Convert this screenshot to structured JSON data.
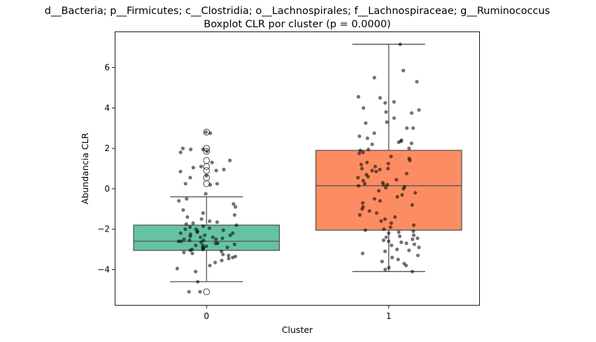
{
  "chart_data": {
    "type": "box",
    "title": "d__Bacteria; p__Firmicutes; c__Clostridia; o__Lachnospirales; f__Lachnospiraceae; g__Ruminococcus",
    "subtitle": "Boxplot CLR por cluster (p = 0.0000)",
    "xlabel": "Cluster",
    "ylabel": "Abundancia CLR",
    "categories": [
      "0",
      "1"
    ],
    "ylim": [
      -5.75,
      7.75
    ],
    "yticks": [
      -4,
      -2,
      0,
      2,
      4,
      6
    ],
    "grid": false,
    "colors": {
      "box": [
        "#66c2a5",
        "#fc8d62"
      ],
      "line": "#555555",
      "point": "#000000"
    },
    "boxes": [
      {
        "category": "0",
        "q1": -3.05,
        "median": -2.6,
        "q3": -1.8,
        "whisker_low": -4.6,
        "whisker_high": -0.4,
        "outliers": [
          2.8,
          2.0,
          1.85,
          1.4,
          1.1,
          0.9,
          0.55,
          0.25,
          -5.1
        ]
      },
      {
        "category": "1",
        "q1": -2.05,
        "median": 0.15,
        "q3": 1.9,
        "whisker_low": -4.1,
        "whisker_high": 7.15,
        "outliers": []
      }
    ],
    "strip_points": [
      {
        "category": "0",
        "values": [
          2.8,
          2.75,
          2.0,
          1.95,
          1.95,
          1.85,
          1.8,
          1.4,
          1.3,
          1.1,
          1.05,
          0.95,
          0.9,
          0.85,
          0.65,
          0.55,
          0.25,
          0.25,
          0.2,
          -0.25,
          -0.5,
          -0.6,
          -0.75,
          -0.9,
          -1.05,
          -1.2,
          -1.3,
          -1.4,
          -1.5,
          -1.6,
          -1.65,
          -1.7,
          -1.75,
          -1.8,
          -1.85,
          -1.9,
          -1.95,
          -2.0,
          -2.0,
          -2.05,
          -2.1,
          -2.15,
          -2.2,
          -2.2,
          -2.25,
          -2.3,
          -2.3,
          -2.35,
          -2.4,
          -2.4,
          -2.45,
          -2.5,
          -2.5,
          -2.55,
          -2.55,
          -2.6,
          -2.6,
          -2.65,
          -2.7,
          -2.7,
          -2.75,
          -2.8,
          -2.8,
          -2.85,
          -2.9,
          -2.9,
          -2.95,
          -3.0,
          -3.0,
          -3.05,
          -3.1,
          -3.15,
          -3.2,
          -3.25,
          -3.3,
          -3.35,
          -3.4,
          -3.45,
          -3.55,
          -3.65,
          -3.8,
          -3.95,
          -4.1,
          -4.6,
          -5.1,
          -5.1
        ]
      },
      {
        "category": "1",
        "values": [
          7.15,
          5.85,
          5.5,
          5.3,
          4.55,
          4.5,
          4.3,
          4.25,
          4.0,
          3.9,
          3.8,
          3.75,
          3.5,
          3.3,
          3.25,
          3.0,
          3.0,
          2.75,
          2.6,
          2.5,
          2.4,
          2.35,
          2.3,
          2.25,
          2.2,
          2.0,
          1.95,
          1.9,
          1.8,
          1.75,
          1.6,
          1.5,
          1.4,
          1.3,
          1.25,
          1.2,
          1.1,
          1.0,
          1.0,
          0.95,
          0.9,
          0.85,
          0.75,
          0.7,
          0.6,
          0.55,
          0.45,
          0.4,
          0.3,
          0.25,
          0.2,
          0.2,
          0.15,
          0.1,
          0.05,
          0.0,
          -0.1,
          -0.2,
          -0.3,
          -0.4,
          -0.5,
          -0.6,
          -0.7,
          -0.8,
          -0.9,
          -1.0,
          -1.1,
          -1.2,
          -1.3,
          -1.4,
          -1.5,
          -1.6,
          -1.7,
          -1.8,
          -1.9,
          -2.0,
          -2.05,
          -2.1,
          -2.15,
          -2.2,
          -2.3,
          -2.35,
          -2.4,
          -2.45,
          -2.5,
          -2.55,
          -2.6,
          -2.65,
          -2.7,
          -2.75,
          -2.8,
          -2.9,
          -3.0,
          -3.05,
          -3.1,
          -3.2,
          -3.3,
          -3.4,
          -3.5,
          -3.6,
          -3.7,
          -3.8,
          -3.9,
          -4.0,
          -4.1
        ]
      }
    ]
  }
}
